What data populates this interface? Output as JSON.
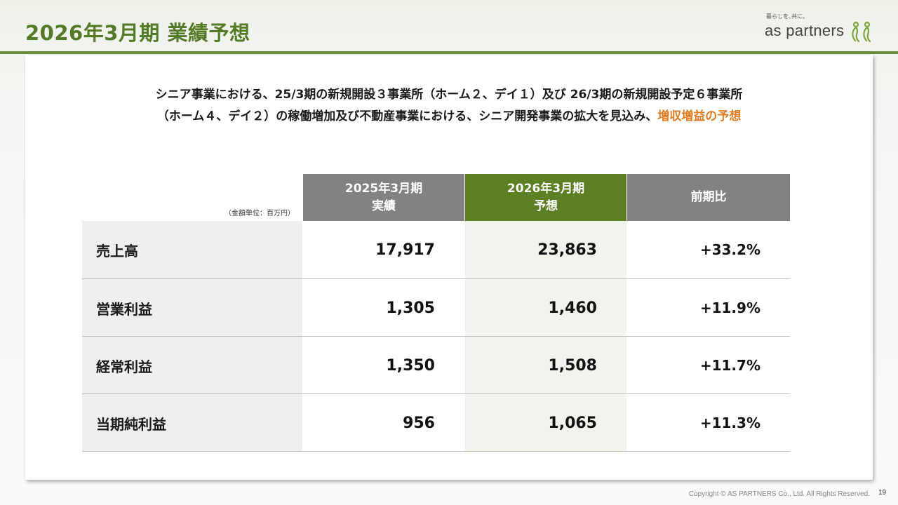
{
  "header": {
    "title": "2026年3月期 業績予想",
    "accent_color": "#557a27"
  },
  "logo": {
    "tagline": "暮らしを､共に｡",
    "name": "as partners"
  },
  "lead": {
    "text_line1": "シニア事業における、25/3期の新規開設３事業所（ホーム２、デイ１）及び 26/3期の新規開設予定６事業所",
    "text_line2": "（ホーム４、デイ２）の稼働増加及び不動産事業における、シニア開発事業の拡大を見込み、",
    "highlight": "増収増益の予想",
    "highlight_color": "#e07b22"
  },
  "table": {
    "unit_note": "（金額単位：百万円）",
    "headers": [
      {
        "line1": "2025年3月期",
        "line2": "実績"
      },
      {
        "line1": "2026年3月期",
        "line2": "予想"
      },
      {
        "line1": "前期比",
        "line2": ""
      }
    ],
    "rows": [
      {
        "label": "売上高",
        "actual": "17,917",
        "forecast": "23,863",
        "change": "+33.2%"
      },
      {
        "label": "営業利益",
        "actual": "1,305",
        "forecast": "1,460",
        "change": "+11.9%"
      },
      {
        "label": "経常利益",
        "actual": "1,350",
        "forecast": "1,508",
        "change": "+11.7%"
      },
      {
        "label": "当期純利益",
        "actual": "956",
        "forecast": "1,065",
        "change": "+11.3%"
      }
    ]
  },
  "footer": {
    "copyright": "Copyright © AS PARTNERS Co., Ltd. All Rights Reserved.",
    "page_number": "19"
  }
}
